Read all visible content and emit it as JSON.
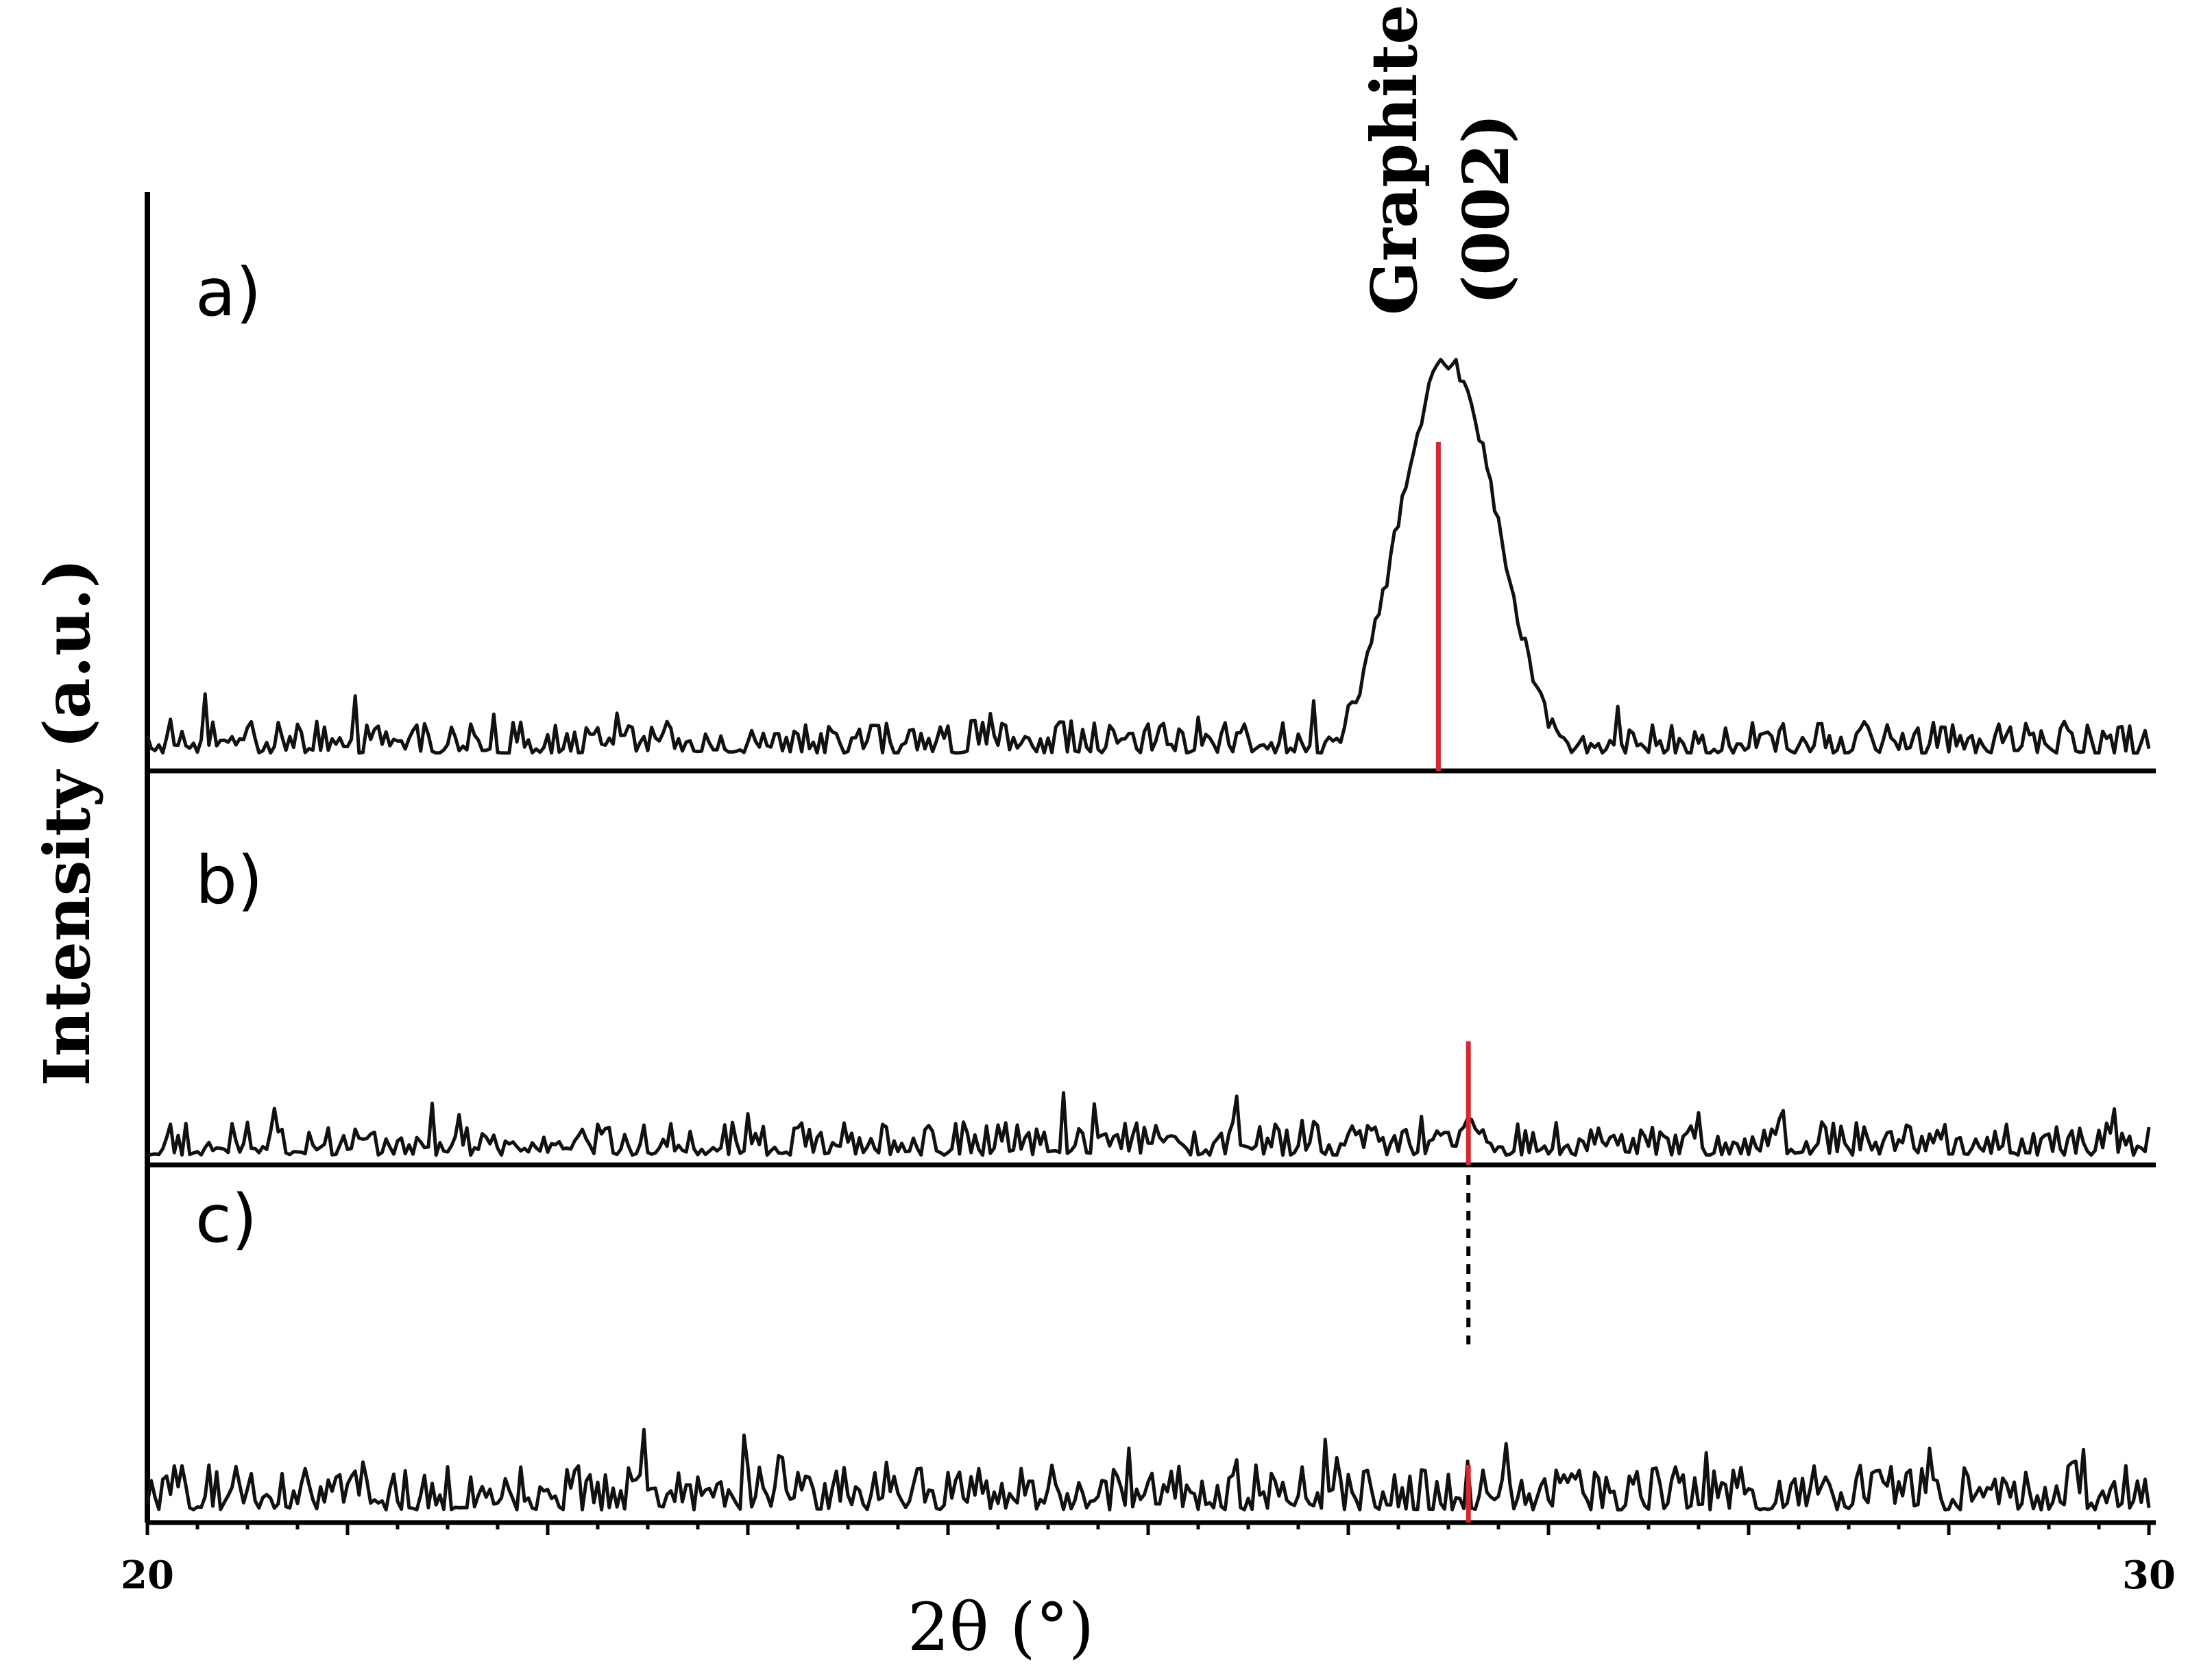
{
  "chart_data": {
    "type": "line",
    "xlabel": "2θ (°)",
    "ylabel": "Intensity (a.u.)",
    "xlim": [
      20,
      30
    ],
    "x_ticks": [
      "20",
      "30"
    ],
    "grid": false,
    "annotation": {
      "line1": "Graphite",
      "line2": "(002)",
      "x": 26.5
    },
    "panels": [
      {
        "label": "a)",
        "noise_level": 0.09,
        "peak": {
          "center": 26.5,
          "height": 1.0,
          "width": 0.25
        },
        "reference_line": {
          "x": 26.45,
          "height": 0.8
        }
      },
      {
        "label": "b)",
        "noise_level": 0.3,
        "peak": {
          "center": 26.6,
          "height": 0.35,
          "width": 0.05
        },
        "reference_line": {
          "x": 26.6,
          "height": 0.95
        }
      },
      {
        "label": "c)",
        "noise_level": 0.32,
        "peak": null,
        "reference_line": {
          "x": 26.6,
          "height": 0.35
        },
        "dashed_guide": {
          "x": 26.6
        }
      }
    ]
  }
}
